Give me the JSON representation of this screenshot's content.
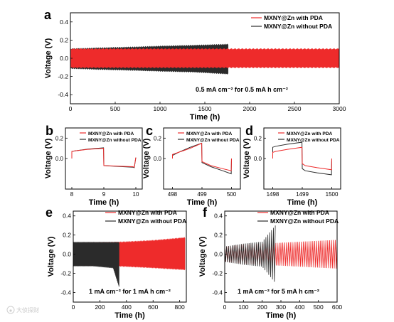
{
  "colors": {
    "with_pda": "#ee2b2b",
    "without_pda": "#2b2b2b",
    "axis": "#000000"
  },
  "watermark_icon": "weibo-logo-icon",
  "watermark_text": "大侦探财 ",
  "chart_data": [
    {
      "id": "a",
      "type": "line",
      "panel_label": "a",
      "xlabel": "Time (h)",
      "ylabel": "Voltage (V)",
      "xlim": [
        0,
        3000
      ],
      "ylim": [
        -0.5,
        0.5
      ],
      "xticks": [
        0,
        500,
        1000,
        1500,
        2000,
        2500,
        3000
      ],
      "yticks": [
        -0.4,
        -0.2,
        0.0,
        0.2,
        0.4
      ],
      "ytick_labels": [
        "-0.4",
        "-0.2",
        "0.0",
        "0.2",
        "0.4"
      ],
      "legend": "top-right",
      "annotation": "0.5 mA cm⁻² for 0.5 mA h cm⁻²",
      "series": [
        {
          "name": "MXNY@Zn with PDA",
          "color_key": "with_pda",
          "envelope": {
            "x": [
              0,
              3000
            ],
            "upper": [
              0.1,
              0.1
            ],
            "lower": [
              -0.1,
              -0.1
            ]
          }
        },
        {
          "name": "MXNY@Zn without PDA",
          "color_key": "without_pda",
          "envelope": {
            "x": [
              0,
              300,
              700,
              1000,
              1400,
              1740,
              1760
            ],
            "upper": [
              0.1,
              0.11,
              0.12,
              0.13,
              0.14,
              0.15,
              0.15
            ],
            "lower": [
              -0.11,
              -0.12,
              -0.13,
              -0.14,
              -0.15,
              -0.17,
              -0.17
            ]
          }
        }
      ]
    },
    {
      "id": "b",
      "type": "line",
      "panel_label": "b",
      "xlabel": "Time (h)",
      "ylabel": "Voltage (V)",
      "xlim": [
        7.8,
        10.2
      ],
      "ylim": [
        -0.3,
        0.3
      ],
      "xticks": [
        8,
        9,
        10
      ],
      "yticks": [
        0.0,
        0.2
      ],
      "ytick_labels": [
        "0.0",
        "0.2"
      ],
      "legend": "top-right",
      "series": [
        {
          "name": "MXNY@Zn with PDA",
          "color_key": "with_pda",
          "x": [
            8.0,
            8.0,
            8.1,
            8.5,
            8.99,
            9.0,
            9.9,
            9.95,
            10.0
          ],
          "y": [
            0.0,
            0.07,
            0.075,
            0.09,
            0.1,
            -0.07,
            -0.08,
            -0.085,
            0.01
          ]
        },
        {
          "name": "MXNY@Zn without PDA",
          "color_key": "without_pda",
          "x": [
            8.0,
            8.0,
            8.1,
            8.5,
            8.99,
            9.0,
            9.9,
            9.95,
            10.0
          ],
          "y": [
            0.0,
            0.07,
            0.075,
            0.092,
            0.105,
            -0.07,
            -0.085,
            -0.09,
            0.01
          ]
        }
      ]
    },
    {
      "id": "c",
      "type": "line",
      "panel_label": "c",
      "xlabel": "Time (h)",
      "ylabel": "Voltage (V)",
      "xlim": [
        497.7,
        500.3
      ],
      "ylim": [
        -0.3,
        0.3
      ],
      "xticks": [
        498,
        499,
        500
      ],
      "yticks": [
        0.0,
        0.2
      ],
      "ytick_labels": [
        "0.0",
        "0.2"
      ],
      "legend": "top-right",
      "series": [
        {
          "name": "MXNY@Zn with PDA",
          "color_key": "with_pda",
          "x": [
            498.0,
            498.0,
            498.2,
            498.6,
            498.99,
            499.0,
            499.3,
            499.7,
            499.99,
            500.0
          ],
          "y": [
            0.0,
            0.04,
            0.06,
            0.1,
            0.15,
            -0.03,
            -0.07,
            -0.1,
            -0.12,
            0.0
          ]
        },
        {
          "name": "MXNY@Zn without PDA",
          "color_key": "without_pda",
          "x": [
            498.0,
            498.0,
            498.2,
            498.6,
            498.99,
            499.0,
            499.3,
            499.7,
            499.99,
            500.0
          ],
          "y": [
            0.0,
            0.03,
            0.06,
            0.11,
            0.15,
            -0.04,
            -0.08,
            -0.12,
            -0.15,
            0.0
          ]
        }
      ]
    },
    {
      "id": "d",
      "type": "line",
      "panel_label": "d",
      "xlabel": "Time (h)",
      "ylabel": "Voltage (V)",
      "xlim": [
        1497.7,
        1500.3
      ],
      "ylim": [
        -0.3,
        0.3
      ],
      "xticks": [
        1498,
        1499,
        1500
      ],
      "yticks": [
        0.0,
        0.2
      ],
      "ytick_labels": [
        "0.0",
        "0.2"
      ],
      "legend": "top-right",
      "series": [
        {
          "name": "MXNY@Zn with PDA",
          "color_key": "with_pda",
          "x": [
            1498.0,
            1498.0,
            1498.1,
            1498.5,
            1498.99,
            1499.0,
            1499.1,
            1499.5,
            1499.99,
            1500.0
          ],
          "y": [
            0.0,
            0.06,
            0.07,
            0.09,
            0.11,
            -0.05,
            -0.07,
            -0.09,
            -0.11,
            0.0
          ]
        },
        {
          "name": "MXNY@Zn without PDA",
          "color_key": "without_pda",
          "x": [
            1498.0,
            1498.0,
            1498.1,
            1498.5,
            1498.99,
            1499.0,
            1499.1,
            1499.5,
            1499.99,
            1500.0
          ],
          "y": [
            0.0,
            0.11,
            0.12,
            0.14,
            0.16,
            -0.1,
            -0.12,
            -0.14,
            -0.16,
            0.0
          ]
        }
      ]
    },
    {
      "id": "e",
      "type": "line",
      "panel_label": "e",
      "xlabel": "Time (h)",
      "ylabel": "Voltage (V)",
      "xlim": [
        0,
        850
      ],
      "ylim": [
        -0.5,
        0.45
      ],
      "xticks": [
        0,
        200,
        400,
        600,
        800
      ],
      "yticks": [
        -0.4,
        -0.2,
        0.0,
        0.2,
        0.4
      ],
      "ytick_labels": [
        "-0.4",
        "-0.2",
        "0.0",
        "0.2",
        "0.4"
      ],
      "legend": "top-right",
      "annotation": "1 mA cm⁻² for 1 mA h cm⁻²",
      "series": [
        {
          "name": "MXNY@Zn with PDA",
          "color_key": "with_pda",
          "envelope": {
            "x": [
              0,
              300,
              600,
              840
            ],
            "upper": [
              0.11,
              0.12,
              0.14,
              0.17
            ],
            "lower": [
              -0.11,
              -0.12,
              -0.14,
              -0.16
            ]
          }
        },
        {
          "name": "MXNY@Zn without PDA",
          "color_key": "without_pda",
          "envelope": {
            "x": [
              0,
              150,
              300,
              345
            ],
            "upper": [
              0.12,
              0.12,
              0.12,
              0.12
            ],
            "lower": [
              -0.12,
              -0.12,
              -0.14,
              -0.34
            ]
          }
        }
      ]
    },
    {
      "id": "f",
      "type": "line",
      "panel_label": "f",
      "xlabel": "Time (h)",
      "ylabel": "Voltage (V)",
      "xlim": [
        0,
        600
      ],
      "ylim": [
        -0.5,
        0.45
      ],
      "xticks": [
        0,
        100,
        200,
        300,
        400,
        500,
        600
      ],
      "yticks": [
        -0.4,
        -0.2,
        0.0,
        0.2,
        0.4
      ],
      "ytick_labels": [
        "-0.4",
        "-0.2",
        "0.0",
        "0.2",
        "0.4"
      ],
      "legend": "top-right",
      "annotation": "1 mA cm⁻² for 5 mA h cm⁻²",
      "series": [
        {
          "name": "MXNY@Zn with PDA",
          "color_key": "with_pda",
          "osc": {
            "x0": 0,
            "x1": 600,
            "period": 10,
            "amp_x": [
              0,
              100,
              300,
              600
            ],
            "amp": [
              0.08,
              0.1,
              0.12,
              0.15
            ]
          }
        },
        {
          "name": "MXNY@Zn without PDA",
          "color_key": "without_pda",
          "osc": {
            "x0": 0,
            "x1": 270,
            "period": 10,
            "amp_x": [
              0,
              100,
              200,
              270
            ],
            "amp": [
              0.08,
              0.11,
              0.13,
              0.3
            ]
          }
        }
      ]
    }
  ]
}
